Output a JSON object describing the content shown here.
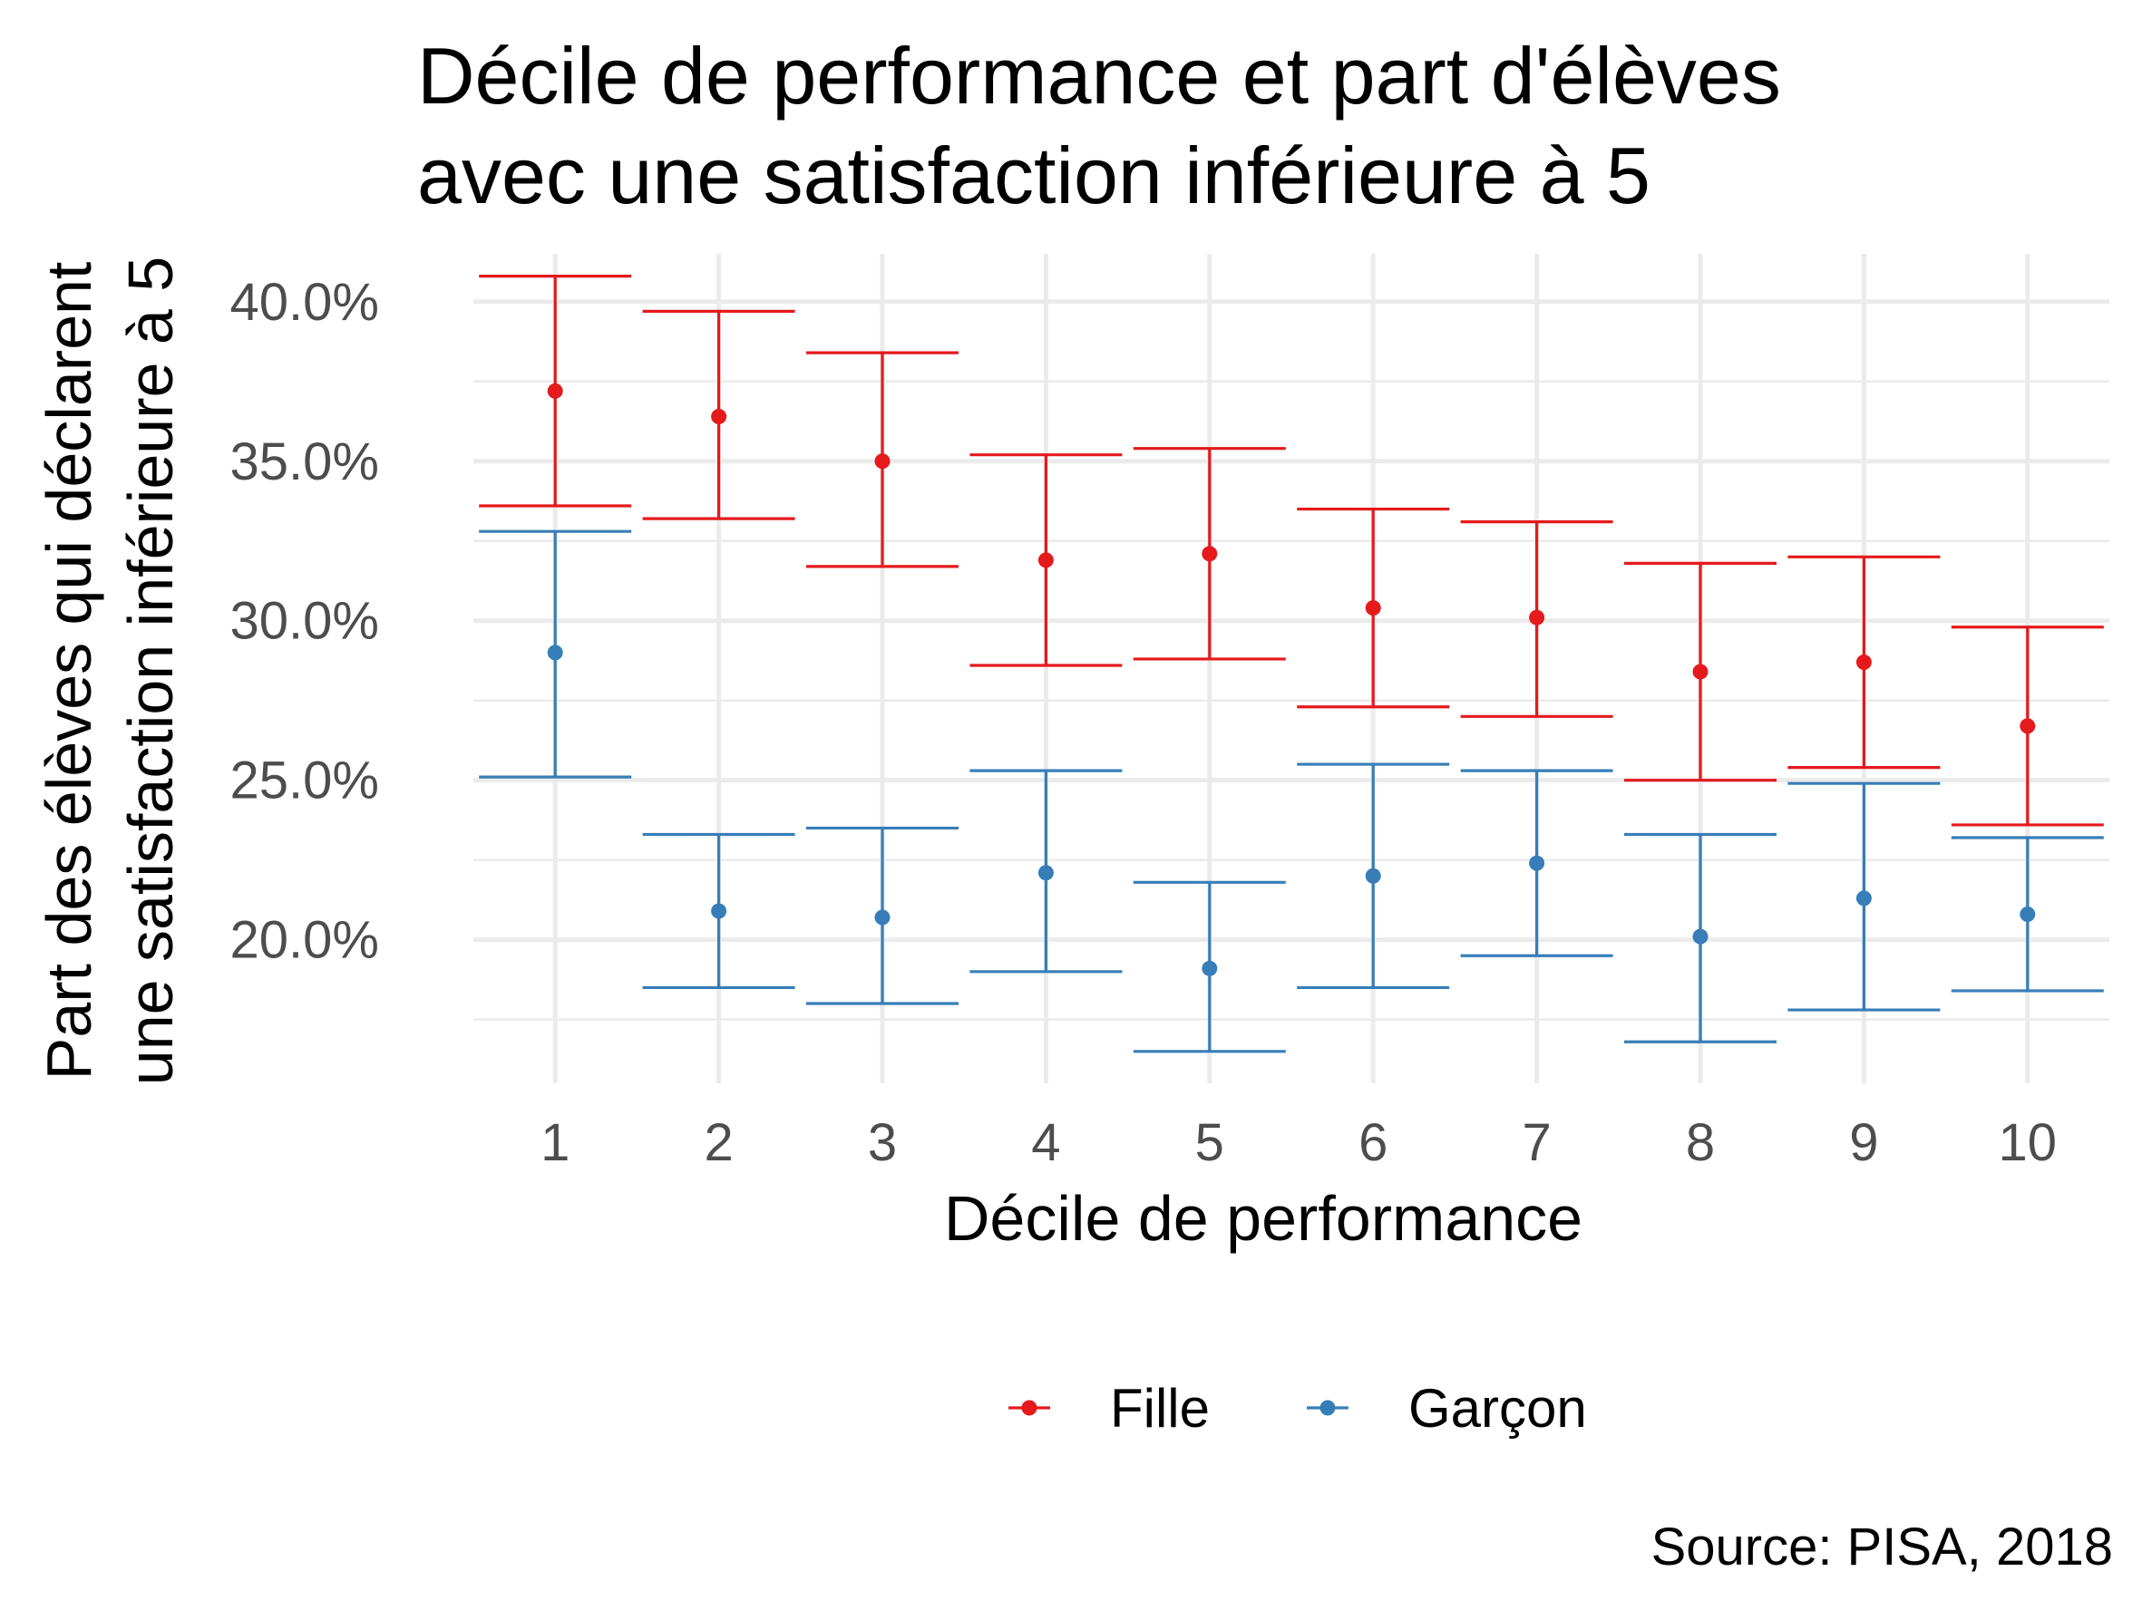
{
  "chart_data": {
    "type": "scatter",
    "title_lines": [
      "Décile de performance et part d'élèves",
      "avec une satisfaction inférieure à 5"
    ],
    "xlabel": "Décile de performance",
    "ylabel_lines": [
      "Part des élèves qui déclarent",
      "une satisfaction inférieure à 5"
    ],
    "x": [
      1,
      2,
      3,
      4,
      5,
      6,
      7,
      8,
      9,
      10
    ],
    "x_tick_labels": [
      "1",
      "2",
      "3",
      "4",
      "5",
      "6",
      "7",
      "8",
      "9",
      "10"
    ],
    "y_ticks": [
      0.2,
      0.25,
      0.3,
      0.35,
      0.4
    ],
    "y_tick_labels": [
      "20.0%",
      "25.0%",
      "30.0%",
      "35.0%",
      "40.0%"
    ],
    "xlim": [
      0.5,
      10.5
    ],
    "ylim": [
      0.155,
      0.415
    ],
    "grid": true,
    "legend_position": "bottom",
    "caption": "Source: PISA, 2018",
    "series": [
      {
        "name": "Fille",
        "color": "#E41A1C",
        "values": [
          0.372,
          0.364,
          0.35,
          0.319,
          0.321,
          0.304,
          0.301,
          0.284,
          0.287,
          0.267
        ],
        "lower": [
          0.336,
          0.332,
          0.317,
          0.286,
          0.288,
          0.273,
          0.27,
          0.25,
          0.254,
          0.236
        ],
        "upper": [
          0.408,
          0.397,
          0.384,
          0.352,
          0.354,
          0.335,
          0.331,
          0.318,
          0.32,
          0.298
        ]
      },
      {
        "name": "Garçon",
        "color": "#377EB8",
        "values": [
          0.29,
          0.209,
          0.207,
          0.221,
          0.191,
          0.22,
          0.224,
          0.201,
          0.213,
          0.208
        ],
        "lower": [
          0.251,
          0.185,
          0.18,
          0.19,
          0.165,
          0.185,
          0.195,
          0.168,
          0.178,
          0.184
        ],
        "upper": [
          0.328,
          0.233,
          0.235,
          0.253,
          0.218,
          0.255,
          0.253,
          0.233,
          0.249,
          0.232
        ]
      }
    ]
  }
}
